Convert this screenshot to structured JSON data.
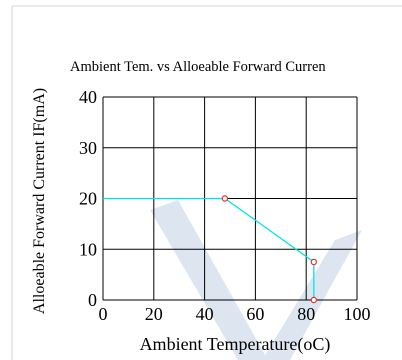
{
  "colors": {
    "line": "#00e5e5",
    "marker": "#e03030",
    "watermark": "#dde6f0",
    "frame": "#cccccc"
  },
  "chart_data": {
    "type": "line",
    "title": "Ambient Tem. vs Alloeable Forward Curren",
    "xlabel": "Ambient Temperature(oC)",
    "ylabel": "Alloeable Forward Current IF(mA)",
    "xlim": [
      0,
      100
    ],
    "ylim": [
      0,
      40
    ],
    "x_ticks": [
      "0",
      "20",
      "40",
      "60",
      "80",
      "100"
    ],
    "y_ticks": [
      "0",
      "10",
      "20",
      "30",
      "40"
    ],
    "grid": true,
    "series": [
      {
        "x": [
          0,
          48,
          83,
          83
        ],
        "y": [
          20,
          20,
          7.5,
          0
        ],
        "marker_x": [
          48,
          83,
          83
        ],
        "marker_y": [
          20,
          7.5,
          0
        ]
      }
    ]
  }
}
